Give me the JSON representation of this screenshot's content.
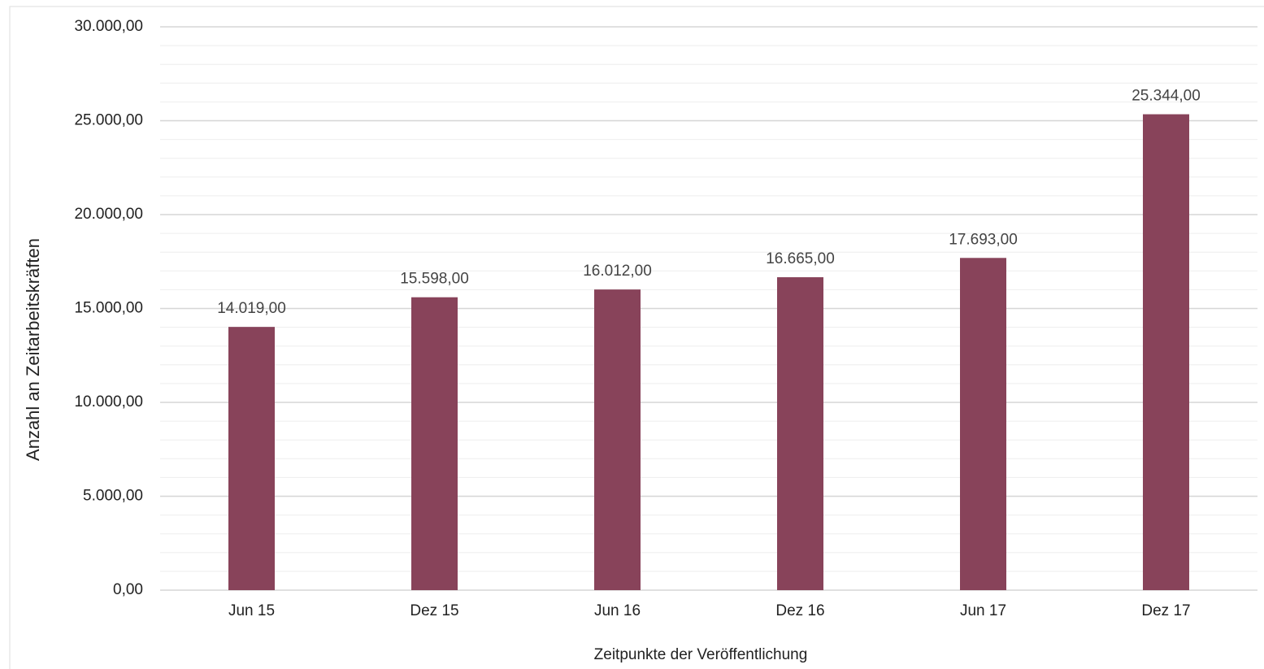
{
  "chart_data": {
    "type": "bar",
    "x_label": "Zeitpunkte der Veröffentlichung",
    "y_label": "Anzahl an Zeitarbeitskräften",
    "categories": [
      "Jun 15",
      "Dez 15",
      "Jun 16",
      "Dez 16",
      "Jun 17",
      "Dez 17"
    ],
    "values": [
      14019,
      15598,
      16012,
      16665,
      17693,
      25344
    ],
    "value_labels": [
      "14.019,00",
      "15.598,00",
      "16.012,00",
      "16.665,00",
      "17.693,00",
      "25.344,00"
    ],
    "color": "#88435a",
    "ylim": [
      0,
      30000
    ],
    "yticks": [
      {
        "value": 0,
        "label": "0,00"
      },
      {
        "value": 5000,
        "label": "5.000,00"
      },
      {
        "value": 10000,
        "label": "10.000,00"
      },
      {
        "value": 15000,
        "label": "15.000,00"
      },
      {
        "value": 20000,
        "label": "20.000,00"
      },
      {
        "value": 25000,
        "label": "25.000,00"
      },
      {
        "value": 30000,
        "label": "30.000,00"
      }
    ],
    "grid": true,
    "minor_grid": 1000
  }
}
